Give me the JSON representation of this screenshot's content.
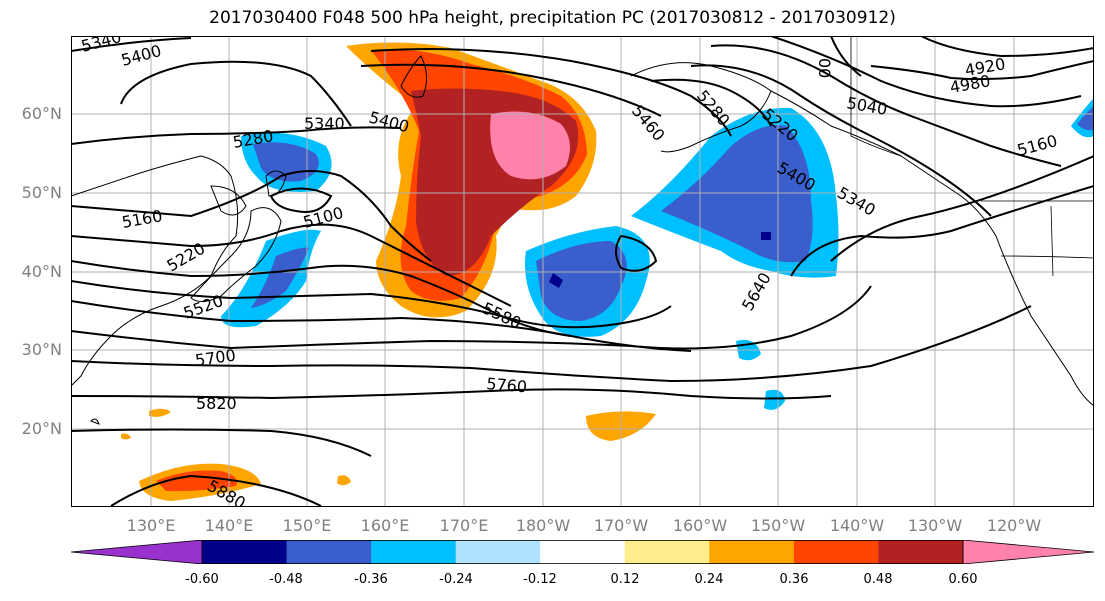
{
  "title": "2017030400 F048 500 hPa height, precipitation PC (2017030812 - 2017030912)",
  "lat_labels": [
    "60°N",
    "50°N",
    "40°N",
    "30°N",
    "20°N"
  ],
  "lon_labels": [
    "130°E",
    "140°E",
    "150°E",
    "160°E",
    "170°E",
    "180°W",
    "170°W",
    "160°W",
    "150°W",
    "140°W",
    "130°W",
    "120°W"
  ],
  "contour_labels": [
    "5340",
    "5400",
    "5280",
    "5340",
    "5400",
    "5160",
    "5100",
    "5220",
    "5520",
    "5700",
    "5820",
    "5880",
    "5760",
    "5580",
    "5640",
    "5460",
    "5280",
    "5220",
    "5400",
    "5340",
    "5040",
    "4920",
    "4980",
    "5160",
    "00"
  ],
  "colorbar": {
    "colors": [
      "#9932CC",
      "#00008B",
      "#3A5FCD",
      "#00BFFF",
      "#B0E2FF",
      "#FFFFFF",
      "#FFEC8B",
      "#FFA500",
      "#FF4500",
      "#B22222",
      "#FF82AB"
    ],
    "ticks": [
      "-0.60",
      "-0.48",
      "-0.36",
      "-0.24",
      "-0.12",
      "0.12",
      "0.24",
      "0.36",
      "0.48",
      "0.60"
    ]
  },
  "style": {
    "gridline": "#b0b0b0",
    "contour": "#000000",
    "tick_label": "#808080"
  }
}
